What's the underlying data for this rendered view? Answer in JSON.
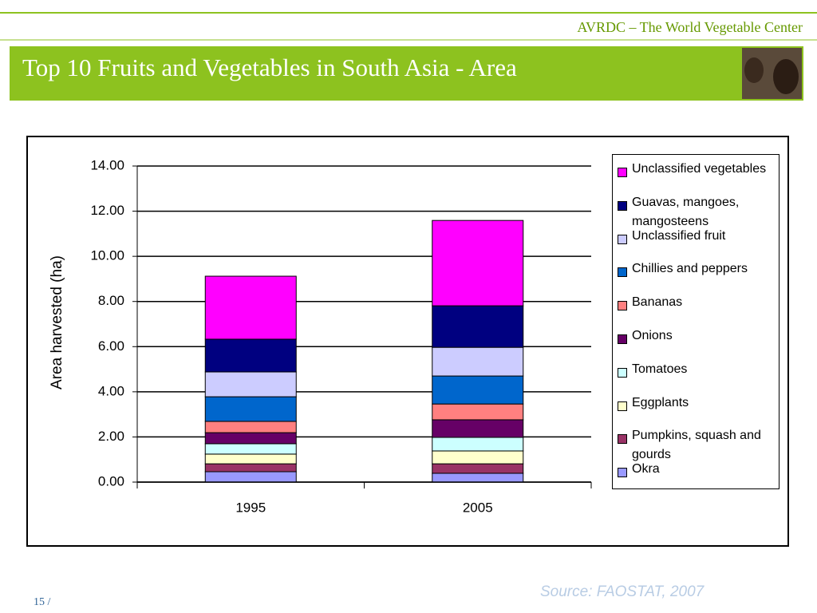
{
  "header": {
    "org": "AVRDC – The World Vegetable Center",
    "title": "Top 10 Fruits and Vegetables in South Asia - Area"
  },
  "chart_data": {
    "type": "stacked-bar",
    "ylabel": "Area harvested (ha)",
    "categories": [
      "1995",
      "2005"
    ],
    "ylim": [
      0,
      14
    ],
    "yticks": [
      {
        "value": 0,
        "label": "0.00"
      },
      {
        "value": 2,
        "label": "2.00"
      },
      {
        "value": 4,
        "label": "4.00"
      },
      {
        "value": 6,
        "label": "6.00"
      },
      {
        "value": 8,
        "label": "8.00"
      },
      {
        "value": 10,
        "label": "10.00"
      },
      {
        "value": 12,
        "label": "12.00"
      },
      {
        "value": 14,
        "label": "14.00"
      }
    ],
    "grid": true,
    "legend": "right",
    "series": [
      {
        "name": "Okra",
        "color": "#9999ff",
        "values": [
          0.46,
          0.39
        ]
      },
      {
        "name": "Pumpkins, squash and gourds",
        "color": "#993366",
        "values": [
          0.35,
          0.42
        ]
      },
      {
        "name": "Eggplants",
        "color": "#ffffcc",
        "values": [
          0.43,
          0.57
        ]
      },
      {
        "name": "Tomatoes",
        "color": "#ccffff",
        "values": [
          0.46,
          0.6
        ]
      },
      {
        "name": "Onions",
        "color": "#660066",
        "values": [
          0.49,
          0.78
        ]
      },
      {
        "name": "Bananas",
        "color": "#ff8080",
        "values": [
          0.5,
          0.7
        ]
      },
      {
        "name": "Chillies and peppers",
        "color": "#0066cc",
        "values": [
          1.09,
          1.24
        ]
      },
      {
        "name": "Unclassified fruit",
        "color": "#ccccff",
        "values": [
          1.1,
          1.27
        ]
      },
      {
        "name": "Guavas, mangoes, mangosteens",
        "color": "#000080",
        "values": [
          1.45,
          1.84
        ]
      },
      {
        "name": "Unclassified vegetables",
        "color": "#ff00ff",
        "values": [
          2.79,
          3.78
        ]
      }
    ]
  },
  "footer": {
    "source": "Source: FAOSTAT, 2007",
    "page": "15 /"
  }
}
